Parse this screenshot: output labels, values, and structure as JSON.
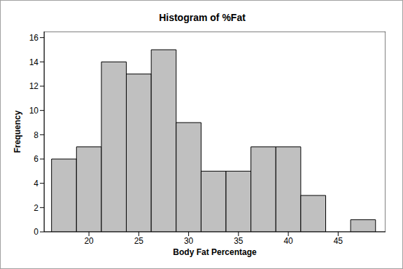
{
  "chart_data": {
    "type": "histogram",
    "title": "Histogram of %Fat",
    "x_label": "Body Fat Percentage",
    "y_label": "Frequency",
    "bins": [
      16.25,
      18.75,
      21.25,
      23.75,
      26.25,
      28.75,
      31.25,
      33.75,
      36.25,
      38.75,
      41.25,
      43.75,
      46.25,
      48.75
    ],
    "values": [
      6,
      7,
      14,
      13,
      15,
      9,
      5,
      5,
      7,
      7,
      3,
      0,
      1
    ],
    "color": "#c0c0c0",
    "xlim": [
      15.5,
      49.75
    ],
    "ylim": [
      0,
      16.5
    ],
    "xticks": [
      20,
      25,
      30,
      35,
      40,
      45
    ],
    "yticks": [
      0,
      2,
      4,
      6,
      8,
      10,
      12,
      14,
      16
    ]
  }
}
